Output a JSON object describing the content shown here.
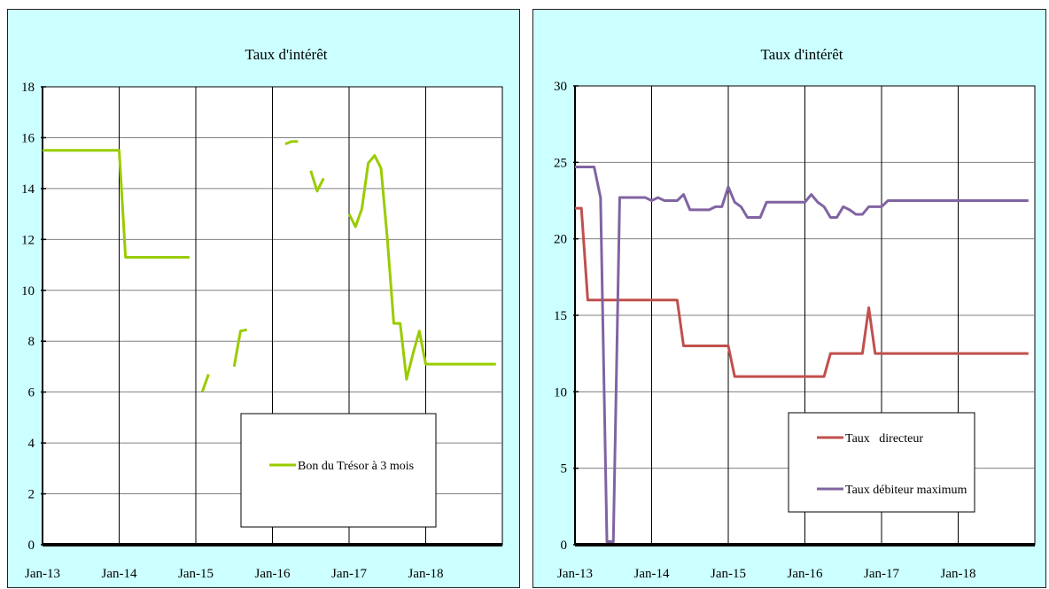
{
  "chart_data": [
    {
      "type": "line",
      "title": "Taux d'intérêt",
      "xlabel": "",
      "ylabel": "",
      "ylim": [
        0,
        18
      ],
      "yticks": [
        0,
        2,
        4,
        6,
        8,
        10,
        12,
        14,
        16,
        18
      ],
      "xtick_labels": [
        "Jan-13",
        "Jan-14",
        "Jan-15",
        "Jan-16",
        "Jan-17",
        "Jan-18"
      ],
      "x_range": [
        "2013-01",
        "2018-12"
      ],
      "grid": true,
      "legend_position": "bottom-right",
      "series": [
        {
          "name": "Bon du Trésor à 3 mois",
          "color": "#99cc00",
          "segments": [
            [
              [
                "2013-01",
                15.5
              ],
              [
                "2013-02",
                15.5
              ],
              [
                "2013-03",
                15.5
              ],
              [
                "2013-04",
                15.5
              ],
              [
                "2013-05",
                15.5
              ],
              [
                "2013-06",
                15.5
              ],
              [
                "2013-07",
                15.5
              ],
              [
                "2013-08",
                15.5
              ],
              [
                "2013-09",
                15.5
              ],
              [
                "2013-10",
                15.5
              ],
              [
                "2013-11",
                15.5
              ],
              [
                "2013-12",
                15.5
              ],
              [
                "2014-01",
                15.5
              ],
              [
                "2014-02",
                11.3
              ],
              [
                "2014-03",
                11.3
              ],
              [
                "2014-04",
                11.3
              ],
              [
                "2014-05",
                11.3
              ],
              [
                "2014-06",
                11.3
              ],
              [
                "2014-07",
                11.3
              ],
              [
                "2014-08",
                11.3
              ],
              [
                "2014-09",
                11.3
              ],
              [
                "2014-10",
                11.3
              ],
              [
                "2014-11",
                11.3
              ],
              [
                "2014-12",
                11.3
              ]
            ],
            [
              [
                "2015-02",
                6.0
              ],
              [
                "2015-03",
                6.7
              ]
            ],
            [
              [
                "2015-07",
                7.0
              ],
              [
                "2015-08",
                8.4
              ],
              [
                "2015-09",
                8.45
              ]
            ],
            [
              [
                "2016-03",
                15.75
              ],
              [
                "2016-04",
                15.85
              ],
              [
                "2016-05",
                15.85
              ]
            ],
            [
              [
                "2016-07",
                14.7
              ],
              [
                "2016-08",
                13.9
              ],
              [
                "2016-09",
                14.4
              ]
            ],
            [
              [
                "2017-01",
                13.0
              ],
              [
                "2017-02",
                12.5
              ],
              [
                "2017-03",
                13.2
              ],
              [
                "2017-04",
                15.0
              ],
              [
                "2017-05",
                15.3
              ],
              [
                "2017-06",
                14.8
              ],
              [
                "2017-07",
                12.0
              ],
              [
                "2017-08",
                8.7
              ],
              [
                "2017-09",
                8.7
              ],
              [
                "2017-10",
                6.5
              ],
              [
                "2017-11",
                7.5
              ],
              [
                "2017-12",
                8.4
              ],
              [
                "2018-01",
                7.1
              ],
              [
                "2018-02",
                7.1
              ],
              [
                "2018-03",
                7.1
              ],
              [
                "2018-04",
                7.1
              ],
              [
                "2018-05",
                7.1
              ],
              [
                "2018-06",
                7.1
              ],
              [
                "2018-07",
                7.1
              ],
              [
                "2018-08",
                7.1
              ],
              [
                "2018-09",
                7.1
              ],
              [
                "2018-10",
                7.1
              ],
              [
                "2018-11",
                7.1
              ],
              [
                "2018-12",
                7.1
              ]
            ]
          ]
        }
      ]
    },
    {
      "type": "line",
      "title": "Taux d'intérêt",
      "xlabel": "",
      "ylabel": "",
      "ylim": [
        0,
        30
      ],
      "yticks": [
        0,
        5,
        10,
        15,
        20,
        25,
        30
      ],
      "xtick_labels": [
        "Jan-13",
        "Jan-14",
        "Jan-15",
        "Jan-16",
        "Jan-17",
        "Jan-18"
      ],
      "x_range": [
        "2013-01",
        "2018-12"
      ],
      "grid": true,
      "legend_position": "bottom-right",
      "series": [
        {
          "name": "Taux   directeur",
          "color": "#c0504d",
          "segments": [
            [
              [
                "2013-01",
                22
              ],
              [
                "2013-02",
                22
              ],
              [
                "2013-03",
                16
              ],
              [
                "2013-04",
                16
              ],
              [
                "2013-05",
                16
              ],
              [
                "2013-06",
                16
              ],
              [
                "2013-07",
                16
              ],
              [
                "2013-08",
                16
              ],
              [
                "2013-09",
                16
              ],
              [
                "2013-10",
                16
              ],
              [
                "2013-11",
                16
              ],
              [
                "2013-12",
                16
              ],
              [
                "2014-01",
                16
              ],
              [
                "2014-02",
                16
              ],
              [
                "2014-03",
                16
              ],
              [
                "2014-04",
                16
              ],
              [
                "2014-05",
                16
              ],
              [
                "2014-06",
                13
              ],
              [
                "2014-07",
                13
              ],
              [
                "2014-08",
                13
              ],
              [
                "2014-09",
                13
              ],
              [
                "2014-10",
                13
              ],
              [
                "2014-11",
                13
              ],
              [
                "2014-12",
                13
              ],
              [
                "2015-01",
                13
              ],
              [
                "2015-02",
                11
              ],
              [
                "2015-03",
                11
              ],
              [
                "2015-04",
                11
              ],
              [
                "2015-05",
                11
              ],
              [
                "2015-06",
                11
              ],
              [
                "2015-07",
                11
              ],
              [
                "2015-08",
                11
              ],
              [
                "2015-09",
                11
              ],
              [
                "2015-10",
                11
              ],
              [
                "2015-11",
                11
              ],
              [
                "2015-12",
                11
              ],
              [
                "2016-01",
                11
              ],
              [
                "2016-02",
                11
              ],
              [
                "2016-03",
                11
              ],
              [
                "2016-04",
                11
              ],
              [
                "2016-05",
                12.5
              ],
              [
                "2016-06",
                12.5
              ],
              [
                "2016-07",
                12.5
              ],
              [
                "2016-08",
                12.5
              ],
              [
                "2016-09",
                12.5
              ],
              [
                "2016-10",
                12.5
              ],
              [
                "2016-11",
                15.5
              ],
              [
                "2016-12",
                12.5
              ],
              [
                "2017-01",
                12.5
              ],
              [
                "2017-02",
                12.5
              ],
              [
                "2017-03",
                12.5
              ],
              [
                "2017-04",
                12.5
              ],
              [
                "2017-05",
                12.5
              ],
              [
                "2017-06",
                12.5
              ],
              [
                "2017-07",
                12.5
              ],
              [
                "2017-08",
                12.5
              ],
              [
                "2017-09",
                12.5
              ],
              [
                "2017-10",
                12.5
              ],
              [
                "2017-11",
                12.5
              ],
              [
                "2017-12",
                12.5
              ],
              [
                "2018-01",
                12.5
              ],
              [
                "2018-02",
                12.5
              ],
              [
                "2018-03",
                12.5
              ],
              [
                "2018-04",
                12.5
              ],
              [
                "2018-05",
                12.5
              ],
              [
                "2018-06",
                12.5
              ],
              [
                "2018-07",
                12.5
              ],
              [
                "2018-08",
                12.5
              ],
              [
                "2018-09",
                12.5
              ],
              [
                "2018-10",
                12.5
              ],
              [
                "2018-11",
                12.5
              ],
              [
                "2018-12",
                12.5
              ]
            ]
          ]
        },
        {
          "name": "Taux débiteur maximum",
          "color": "#8064a2",
          "segments": [
            [
              [
                "2013-01",
                24.7
              ],
              [
                "2013-02",
                24.7
              ],
              [
                "2013-03",
                24.7
              ],
              [
                "2013-04",
                24.7
              ],
              [
                "2013-05",
                22.7
              ],
              [
                "2013-06",
                0.2
              ],
              [
                "2013-07",
                0.2
              ],
              [
                "2013-08",
                22.7
              ],
              [
                "2013-09",
                22.7
              ],
              [
                "2013-10",
                22.7
              ],
              [
                "2013-11",
                22.7
              ],
              [
                "2013-12",
                22.7
              ],
              [
                "2014-01",
                22.5
              ],
              [
                "2014-02",
                22.7
              ],
              [
                "2014-03",
                22.5
              ],
              [
                "2014-04",
                22.5
              ],
              [
                "2014-05",
                22.5
              ],
              [
                "2014-06",
                22.9
              ],
              [
                "2014-07",
                21.9
              ],
              [
                "2014-08",
                21.9
              ],
              [
                "2014-09",
                21.9
              ],
              [
                "2014-10",
                21.9
              ],
              [
                "2014-11",
                22.1
              ],
              [
                "2014-12",
                22.1
              ],
              [
                "2015-01",
                23.4
              ],
              [
                "2015-02",
                22.4
              ],
              [
                "2015-03",
                22.1
              ],
              [
                "2015-04",
                21.4
              ],
              [
                "2015-05",
                21.4
              ],
              [
                "2015-06",
                21.4
              ],
              [
                "2015-07",
                22.4
              ],
              [
                "2015-08",
                22.4
              ],
              [
                "2015-09",
                22.4
              ],
              [
                "2015-10",
                22.4
              ],
              [
                "2015-11",
                22.4
              ],
              [
                "2015-12",
                22.4
              ],
              [
                "2016-01",
                22.4
              ],
              [
                "2016-02",
                22.9
              ],
              [
                "2016-03",
                22.4
              ],
              [
                "2016-04",
                22.1
              ],
              [
                "2016-05",
                21.4
              ],
              [
                "2016-06",
                21.4
              ],
              [
                "2016-07",
                22.1
              ],
              [
                "2016-08",
                21.9
              ],
              [
                "2016-09",
                21.6
              ],
              [
                "2016-10",
                21.6
              ],
              [
                "2016-11",
                22.1
              ],
              [
                "2016-12",
                22.1
              ],
              [
                "2017-01",
                22.1
              ],
              [
                "2017-02",
                22.5
              ],
              [
                "2017-03",
                22.5
              ],
              [
                "2017-04",
                22.5
              ],
              [
                "2017-05",
                22.5
              ],
              [
                "2017-06",
                22.5
              ],
              [
                "2017-07",
                22.5
              ],
              [
                "2017-08",
                22.5
              ],
              [
                "2017-09",
                22.5
              ],
              [
                "2017-10",
                22.5
              ],
              [
                "2017-11",
                22.5
              ],
              [
                "2017-12",
                22.5
              ],
              [
                "2018-01",
                22.5
              ],
              [
                "2018-02",
                22.5
              ],
              [
                "2018-03",
                22.5
              ],
              [
                "2018-04",
                22.5
              ],
              [
                "2018-05",
                22.5
              ],
              [
                "2018-06",
                22.5
              ],
              [
                "2018-07",
                22.5
              ],
              [
                "2018-08",
                22.5
              ],
              [
                "2018-09",
                22.5
              ],
              [
                "2018-10",
                22.5
              ],
              [
                "2018-11",
                22.5
              ],
              [
                "2018-12",
                22.5
              ]
            ]
          ]
        }
      ]
    }
  ]
}
